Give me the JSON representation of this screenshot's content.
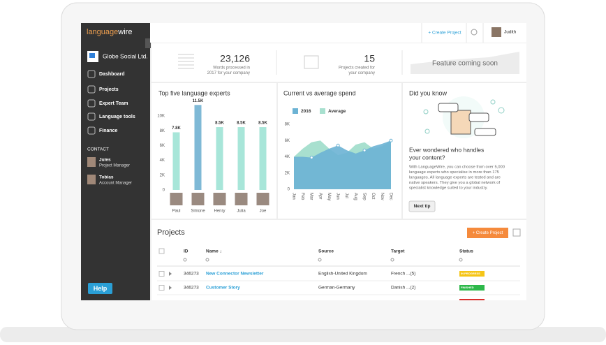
{
  "sidebar": {
    "logo_a": "language",
    "logo_b": "wire",
    "company": "Globe Social Ltd.",
    "nav": [
      "Dashboard",
      "Projects",
      "Expert Team",
      "Language tools",
      "Finance"
    ],
    "contact_title": "CONTACT",
    "contacts": [
      {
        "name": "Jules",
        "role": "Project Manager"
      },
      {
        "name": "Tobias",
        "role": "Account Manager"
      }
    ],
    "help": "Help"
  },
  "topbar": {
    "create": "+ Create Project",
    "user": "Judith"
  },
  "stats": [
    {
      "value": "23,126",
      "lines": [
        "Words processed in",
        "2017 for your company"
      ]
    },
    {
      "value": "15",
      "lines": [
        "Projects created for",
        "your company"
      ]
    },
    {
      "value": "Feature coming soon",
      "lines": []
    }
  ],
  "experts_chart": {
    "type": "bar",
    "title": "Top five language experts",
    "categories": [
      "Paul",
      "Simone",
      "Henry",
      "Julia",
      "Joe"
    ],
    "values": [
      7800,
      11500,
      8500,
      8500,
      8500
    ],
    "value_labels": [
      "7.8K",
      "11.5K",
      "8.5K",
      "8.5K",
      "8.5K"
    ],
    "colors": [
      "#a8e6d9",
      "#7fb9d6",
      "#a8e6d9",
      "#a8e6d9",
      "#a8e6d9"
    ],
    "ylim": [
      0,
      12000
    ],
    "yticks": [
      0,
      {
        "value": 2000,
        "label": "2K"
      },
      {
        "value": 4000,
        "label": "4K"
      },
      {
        "value": 6000,
        "label": "6K"
      },
      {
        "value": 8000,
        "label": "8K"
      },
      {
        "value": 10000,
        "label": "10K"
      }
    ]
  },
  "spend_chart": {
    "type": "area",
    "title": "Current vs average spend",
    "categories": [
      "Jan",
      "Feb",
      "Mar",
      "Apr",
      "May",
      "Jun",
      "Jul",
      "Aug",
      "Sep",
      "Oct",
      "Nov",
      "Dec"
    ],
    "series": [
      {
        "name": "Average",
        "color": "#a8e0cf",
        "values": [
          4000,
          5000,
          5800,
          6000,
          5000,
          4200,
          4500,
          5500,
          5800,
          5000,
          5300,
          6000
        ]
      },
      {
        "name": "2016",
        "color": "#6cb3d4",
        "values": [
          4000,
          4000,
          3900,
          4500,
          5000,
          5400,
          4800,
          4400,
          4800,
          5300,
          5600,
          6000
        ]
      }
    ],
    "legend_order": [
      1,
      0
    ],
    "ylim": [
      0,
      8000
    ],
    "yticks": [
      0,
      {
        "value": 2000,
        "label": "2K"
      },
      {
        "value": 4000,
        "label": "4K"
      },
      {
        "value": 6000,
        "label": "6K"
      },
      {
        "value": 8000,
        "label": "8K"
      }
    ]
  },
  "tip": {
    "title": "Did you know",
    "heading": [
      "Ever wondered who handles",
      "your content?"
    ],
    "body": [
      "With LanguageWire, you can choose from over 5,000",
      "language experts who specialise in more than 175",
      "languages. All language experts are tested and are",
      "native speakers. They give you a global network of",
      "specialist knowledge suited to your industry."
    ],
    "button": "Next tip"
  },
  "projects": {
    "title": "Projects",
    "create": "+ Create Project",
    "columns": [
      "ID",
      "Name ↓",
      "Source",
      "Target",
      "Status"
    ],
    "rows": [
      [
        "346273",
        "New Connector Newsletter",
        "English-United Kingdom",
        "French ...(5)",
        "IN PROGRESS"
      ],
      [
        "346273",
        "Customer Story",
        "German-Germany",
        "Danish ...(2)",
        "FINISHED"
      ]
    ]
  }
}
